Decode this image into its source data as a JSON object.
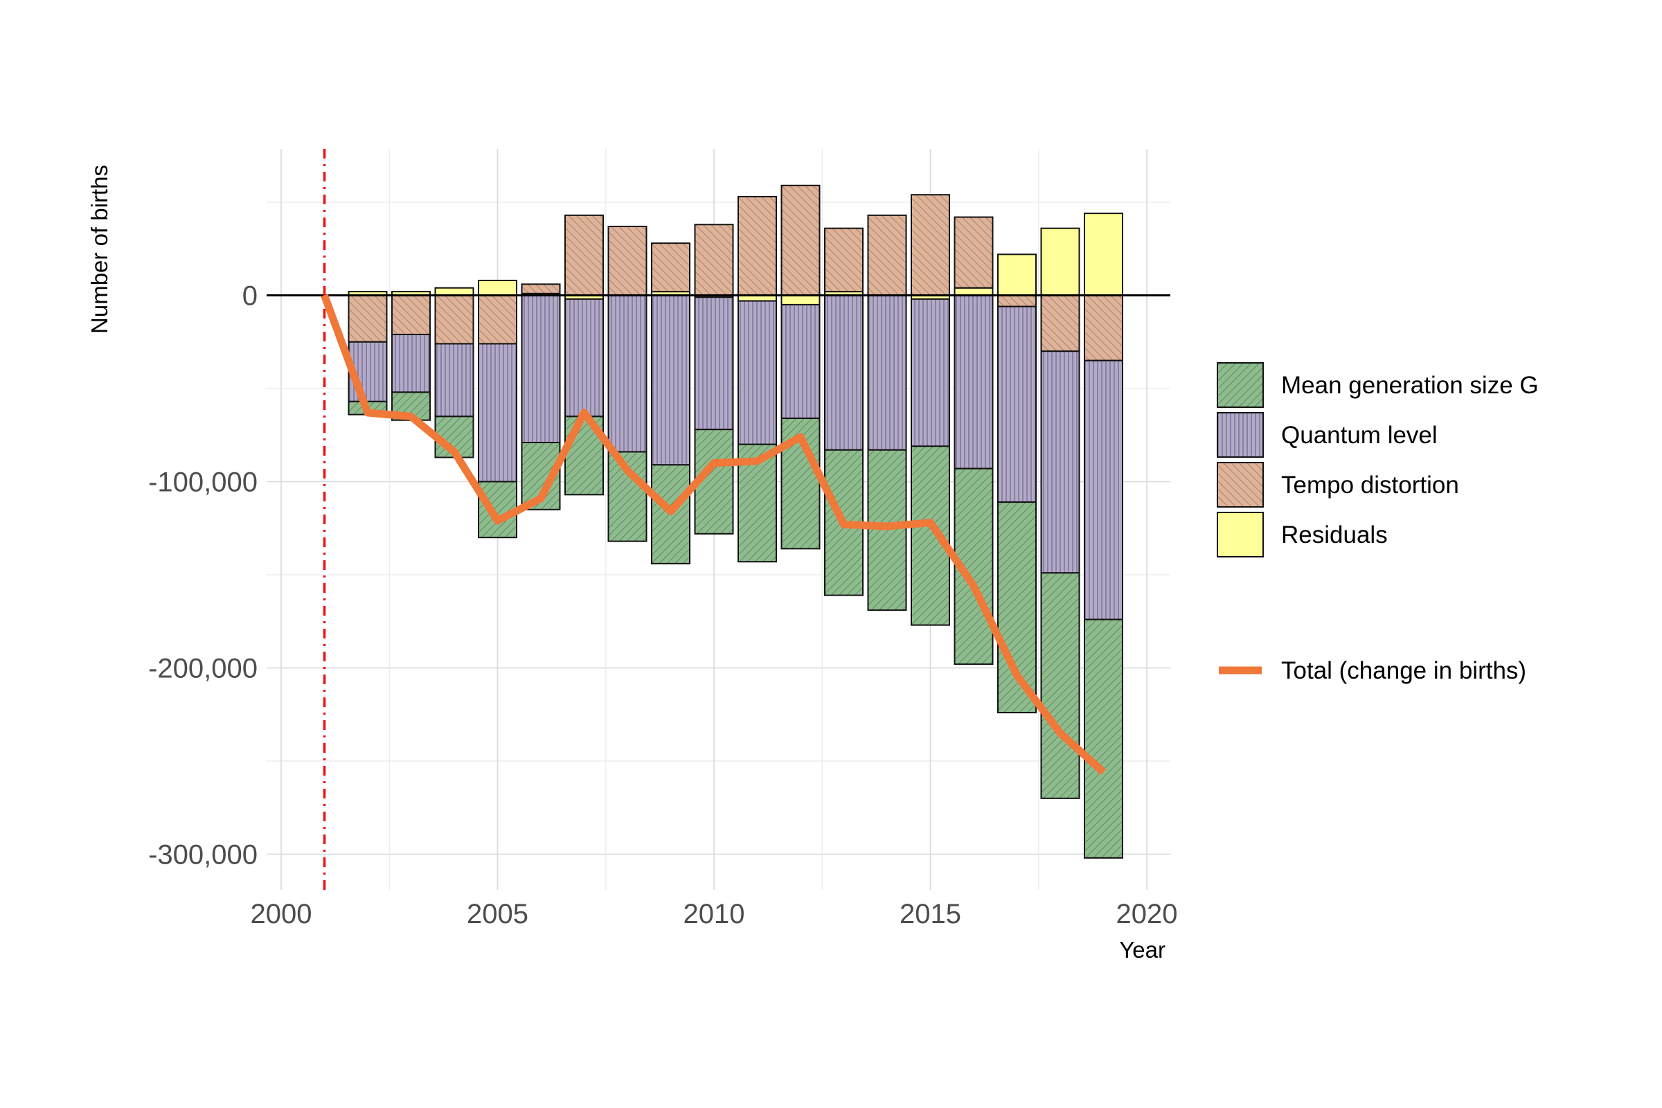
{
  "chart_data": {
    "type": "bar",
    "stacked": true,
    "xlabel": "Year",
    "ylabel": "Number of births",
    "xlim": [
      2000,
      2020
    ],
    "ylim": [
      -300000,
      60000
    ],
    "xticks": [
      {
        "value": 2000,
        "label": "2000"
      },
      {
        "value": 2005,
        "label": "2005"
      },
      {
        "value": 2010,
        "label": "2010"
      },
      {
        "value": 2015,
        "label": "2015"
      },
      {
        "value": 2020,
        "label": "2020"
      }
    ],
    "yticks": [
      {
        "value": 0,
        "label": "0"
      },
      {
        "value": -100000,
        "label": "-100,000"
      },
      {
        "value": -200000,
        "label": "-200,000"
      },
      {
        "value": -300000,
        "label": "-300,000"
      }
    ],
    "grid": true,
    "reference_vline": {
      "x": 2001,
      "color": "#ee1111",
      "style": "dash-dot"
    },
    "legend_position": "right",
    "years": [
      2002,
      2003,
      2004,
      2005,
      2006,
      2007,
      2008,
      2009,
      2010,
      2011,
      2012,
      2013,
      2014,
      2015,
      2016,
      2017,
      2018,
      2019
    ],
    "series": [
      {
        "name": "Mean generation size G",
        "key": "g",
        "color": "#8fbc8f",
        "values": [
          -7000,
          -15000,
          -22000,
          -30000,
          -36000,
          -42000,
          -48000,
          -53000,
          -56000,
          -63000,
          -70000,
          -78000,
          -86000,
          -96000,
          -105000,
          -113000,
          -121000,
          -128000
        ]
      },
      {
        "name": "Quantum level",
        "key": "q",
        "color": "#b3a9c9",
        "values": [
          -32000,
          -31000,
          -39000,
          -74000,
          -79000,
          -63000,
          -84000,
          -91000,
          -71000,
          -77000,
          -61000,
          -83000,
          -83000,
          -79000,
          -93000,
          -105000,
          -119000,
          -139000
        ]
      },
      {
        "name": "Tempo distortion",
        "key": "t",
        "color": "#deb399",
        "values": [
          -25000,
          -21000,
          -26000,
          -26000,
          5000,
          43000,
          37000,
          26000,
          38000,
          53000,
          59000,
          34000,
          43000,
          54000,
          38000,
          -6000,
          -30000,
          -35000
        ]
      },
      {
        "name": "Residuals",
        "key": "r",
        "color": "#ffff99",
        "values": [
          2000,
          2000,
          4000,
          8000,
          1000,
          -2000,
          0,
          2000,
          -1000,
          -3000,
          -5000,
          2000,
          0,
          -2000,
          4000,
          22000,
          36000,
          44000
        ]
      }
    ],
    "total": {
      "name": "Total (change in births)",
      "color": "#f07838",
      "x": [
        2001,
        2002,
        2003,
        2004,
        2005,
        2006,
        2007,
        2008,
        2009,
        2010,
        2011,
        2012,
        2013,
        2014,
        2015,
        2016,
        2017,
        2018,
        2019
      ],
      "values": [
        0,
        -63000,
        -65000,
        -84000,
        -121000,
        -109000,
        -63000,
        -94000,
        -116000,
        -90000,
        -89000,
        -76000,
        -123000,
        -124000,
        -122000,
        -156000,
        -204000,
        -235000,
        -256000
      ]
    }
  }
}
